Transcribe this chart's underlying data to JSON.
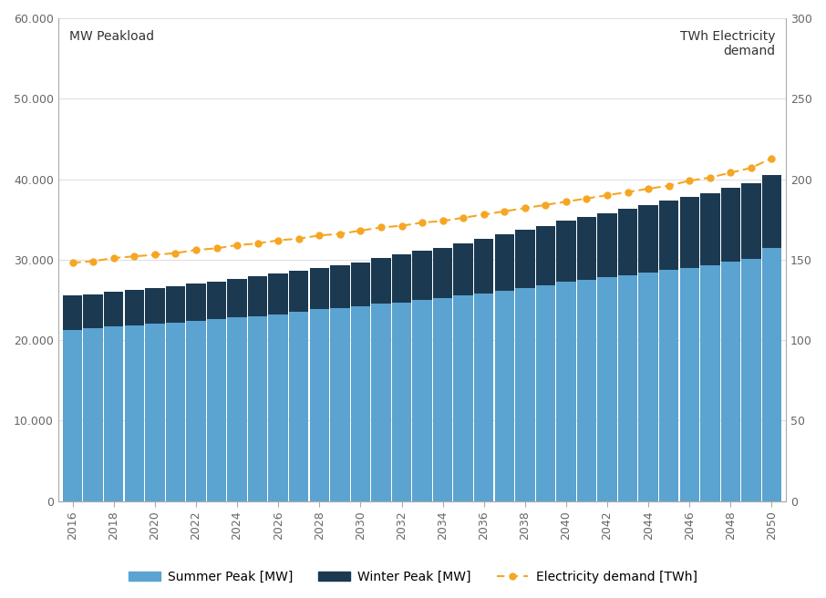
{
  "years": [
    2016,
    2017,
    2018,
    2019,
    2020,
    2021,
    2022,
    2023,
    2024,
    2025,
    2026,
    2027,
    2028,
    2029,
    2030,
    2031,
    2032,
    2033,
    2034,
    2035,
    2036,
    2037,
    2038,
    2039,
    2040,
    2041,
    2042,
    2043,
    2044,
    2045,
    2046,
    2047,
    2048,
    2049,
    2050
  ],
  "summer_peak": [
    21300,
    21500,
    21700,
    21800,
    22000,
    22200,
    22400,
    22600,
    22800,
    23000,
    23200,
    23500,
    23800,
    24000,
    24200,
    24500,
    24700,
    25000,
    25200,
    25500,
    25800,
    26100,
    26500,
    26800,
    27200,
    27500,
    27800,
    28100,
    28400,
    28700,
    29000,
    29300,
    29700,
    30100,
    31500
  ],
  "winter_peak_add": [
    4200,
    4200,
    4300,
    4400,
    4500,
    4500,
    4600,
    4700,
    4800,
    4900,
    5100,
    5100,
    5200,
    5300,
    5400,
    5700,
    5900,
    6100,
    6300,
    6500,
    6800,
    7000,
    7200,
    7400,
    7600,
    7800,
    8000,
    8200,
    8400,
    8600,
    8800,
    9000,
    9200,
    9400,
    9000
  ],
  "electricity_demand_twh": [
    148,
    149,
    151,
    152,
    153,
    154,
    156,
    157,
    159,
    160,
    162,
    163,
    165,
    166,
    168,
    170,
    171,
    173,
    174,
    176,
    178,
    180,
    182,
    184,
    186,
    188,
    190,
    192,
    194,
    196,
    199,
    201,
    204,
    207,
    213
  ],
  "summer_peak_color": "#5BA3D0",
  "winter_peak_color": "#1B3A52",
  "elec_demand_color": "#F5A623",
  "background_color": "#ffffff",
  "left_ylim": [
    0,
    60000
  ],
  "right_ylim": [
    0,
    300
  ],
  "left_yticks": [
    0,
    10000,
    20000,
    30000,
    40000,
    50000,
    60000
  ],
  "right_yticks": [
    0,
    50,
    100,
    150,
    200,
    250,
    300
  ],
  "left_ylabel": "MW Peakload",
  "right_ylabel": "TWh Electricity\ndemand",
  "legend_labels": [
    "Summer Peak [MW]",
    "Winter Peak [MW]",
    "Electricity demand [TWh]"
  ],
  "bar_width": 0.95,
  "spine_color": "#aaaaaa",
  "tick_label_color": "#666666",
  "grid_color": "#dddddd",
  "figsize": [
    9.06,
    6.56
  ],
  "dpi": 100
}
